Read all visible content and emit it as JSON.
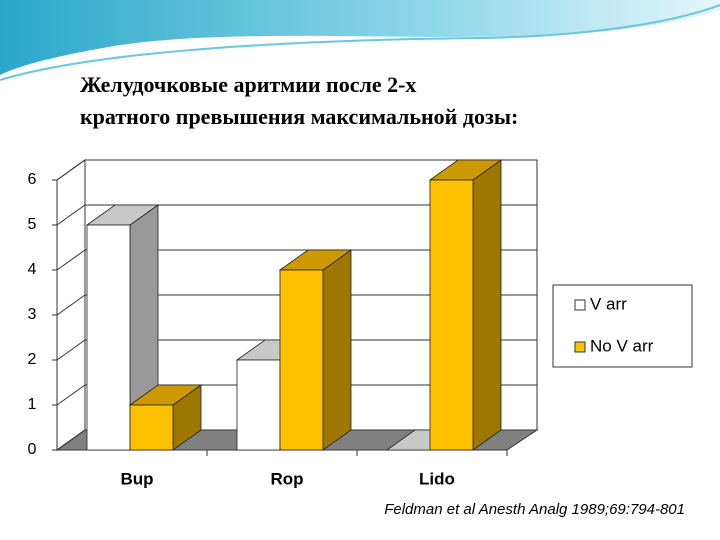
{
  "chart_data": {
    "type": "bar3d",
    "title": [
      "Желудочковые аритмии после 2-х",
      "кратного превышения максимальной дозы:"
    ],
    "categories": [
      "Bup",
      "Rop",
      "Lido"
    ],
    "series": [
      {
        "name": "V arr",
        "color": "#ffffff",
        "values": [
          5,
          2,
          0
        ]
      },
      {
        "name": "No V arr",
        "color": "#ffc000",
        "values": [
          1,
          4,
          6
        ]
      }
    ],
    "ylim": [
      0,
      6
    ],
    "yticks": [
      0,
      1,
      2,
      3,
      4,
      5,
      6
    ],
    "grid": true,
    "legend": "right",
    "source": "Feldman et al Anesth Analg 1989;69:794-801"
  }
}
